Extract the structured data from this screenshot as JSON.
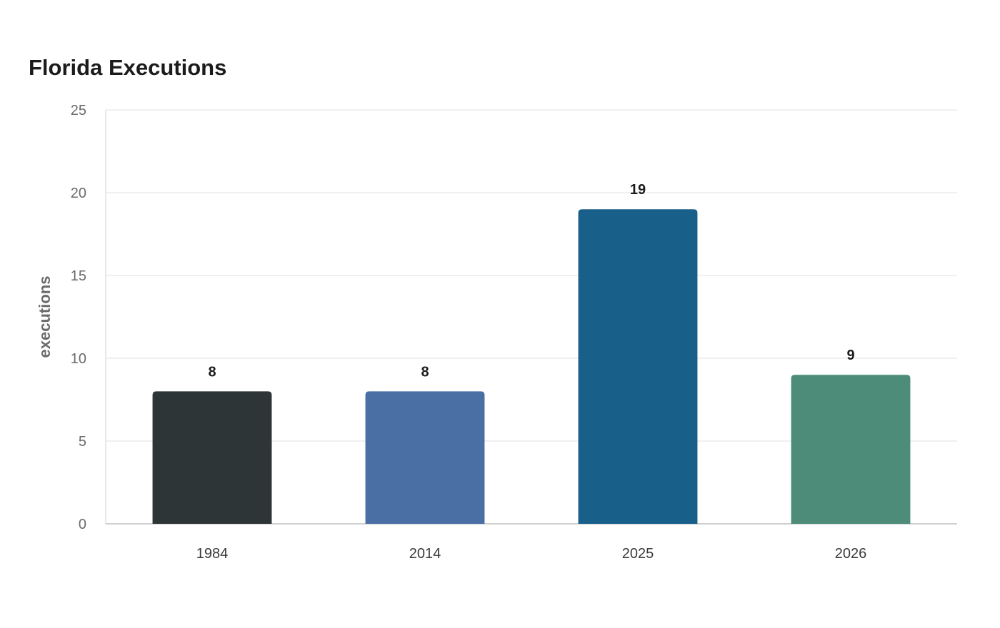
{
  "chart_data": {
    "type": "bar",
    "title": "Florida Executions",
    "xlabel": "",
    "ylabel": "executions",
    "categories": [
      "1984",
      "2014",
      "2025",
      "2026"
    ],
    "values": [
      8,
      8,
      19,
      9
    ],
    "colors": [
      "#2e3537",
      "#4a6fa5",
      "#186089",
      "#4e8c7a"
    ],
    "ylim": [
      0,
      25
    ],
    "yticks": [
      0,
      5,
      10,
      15,
      20,
      25
    ],
    "grid": true,
    "legend": "none"
  }
}
